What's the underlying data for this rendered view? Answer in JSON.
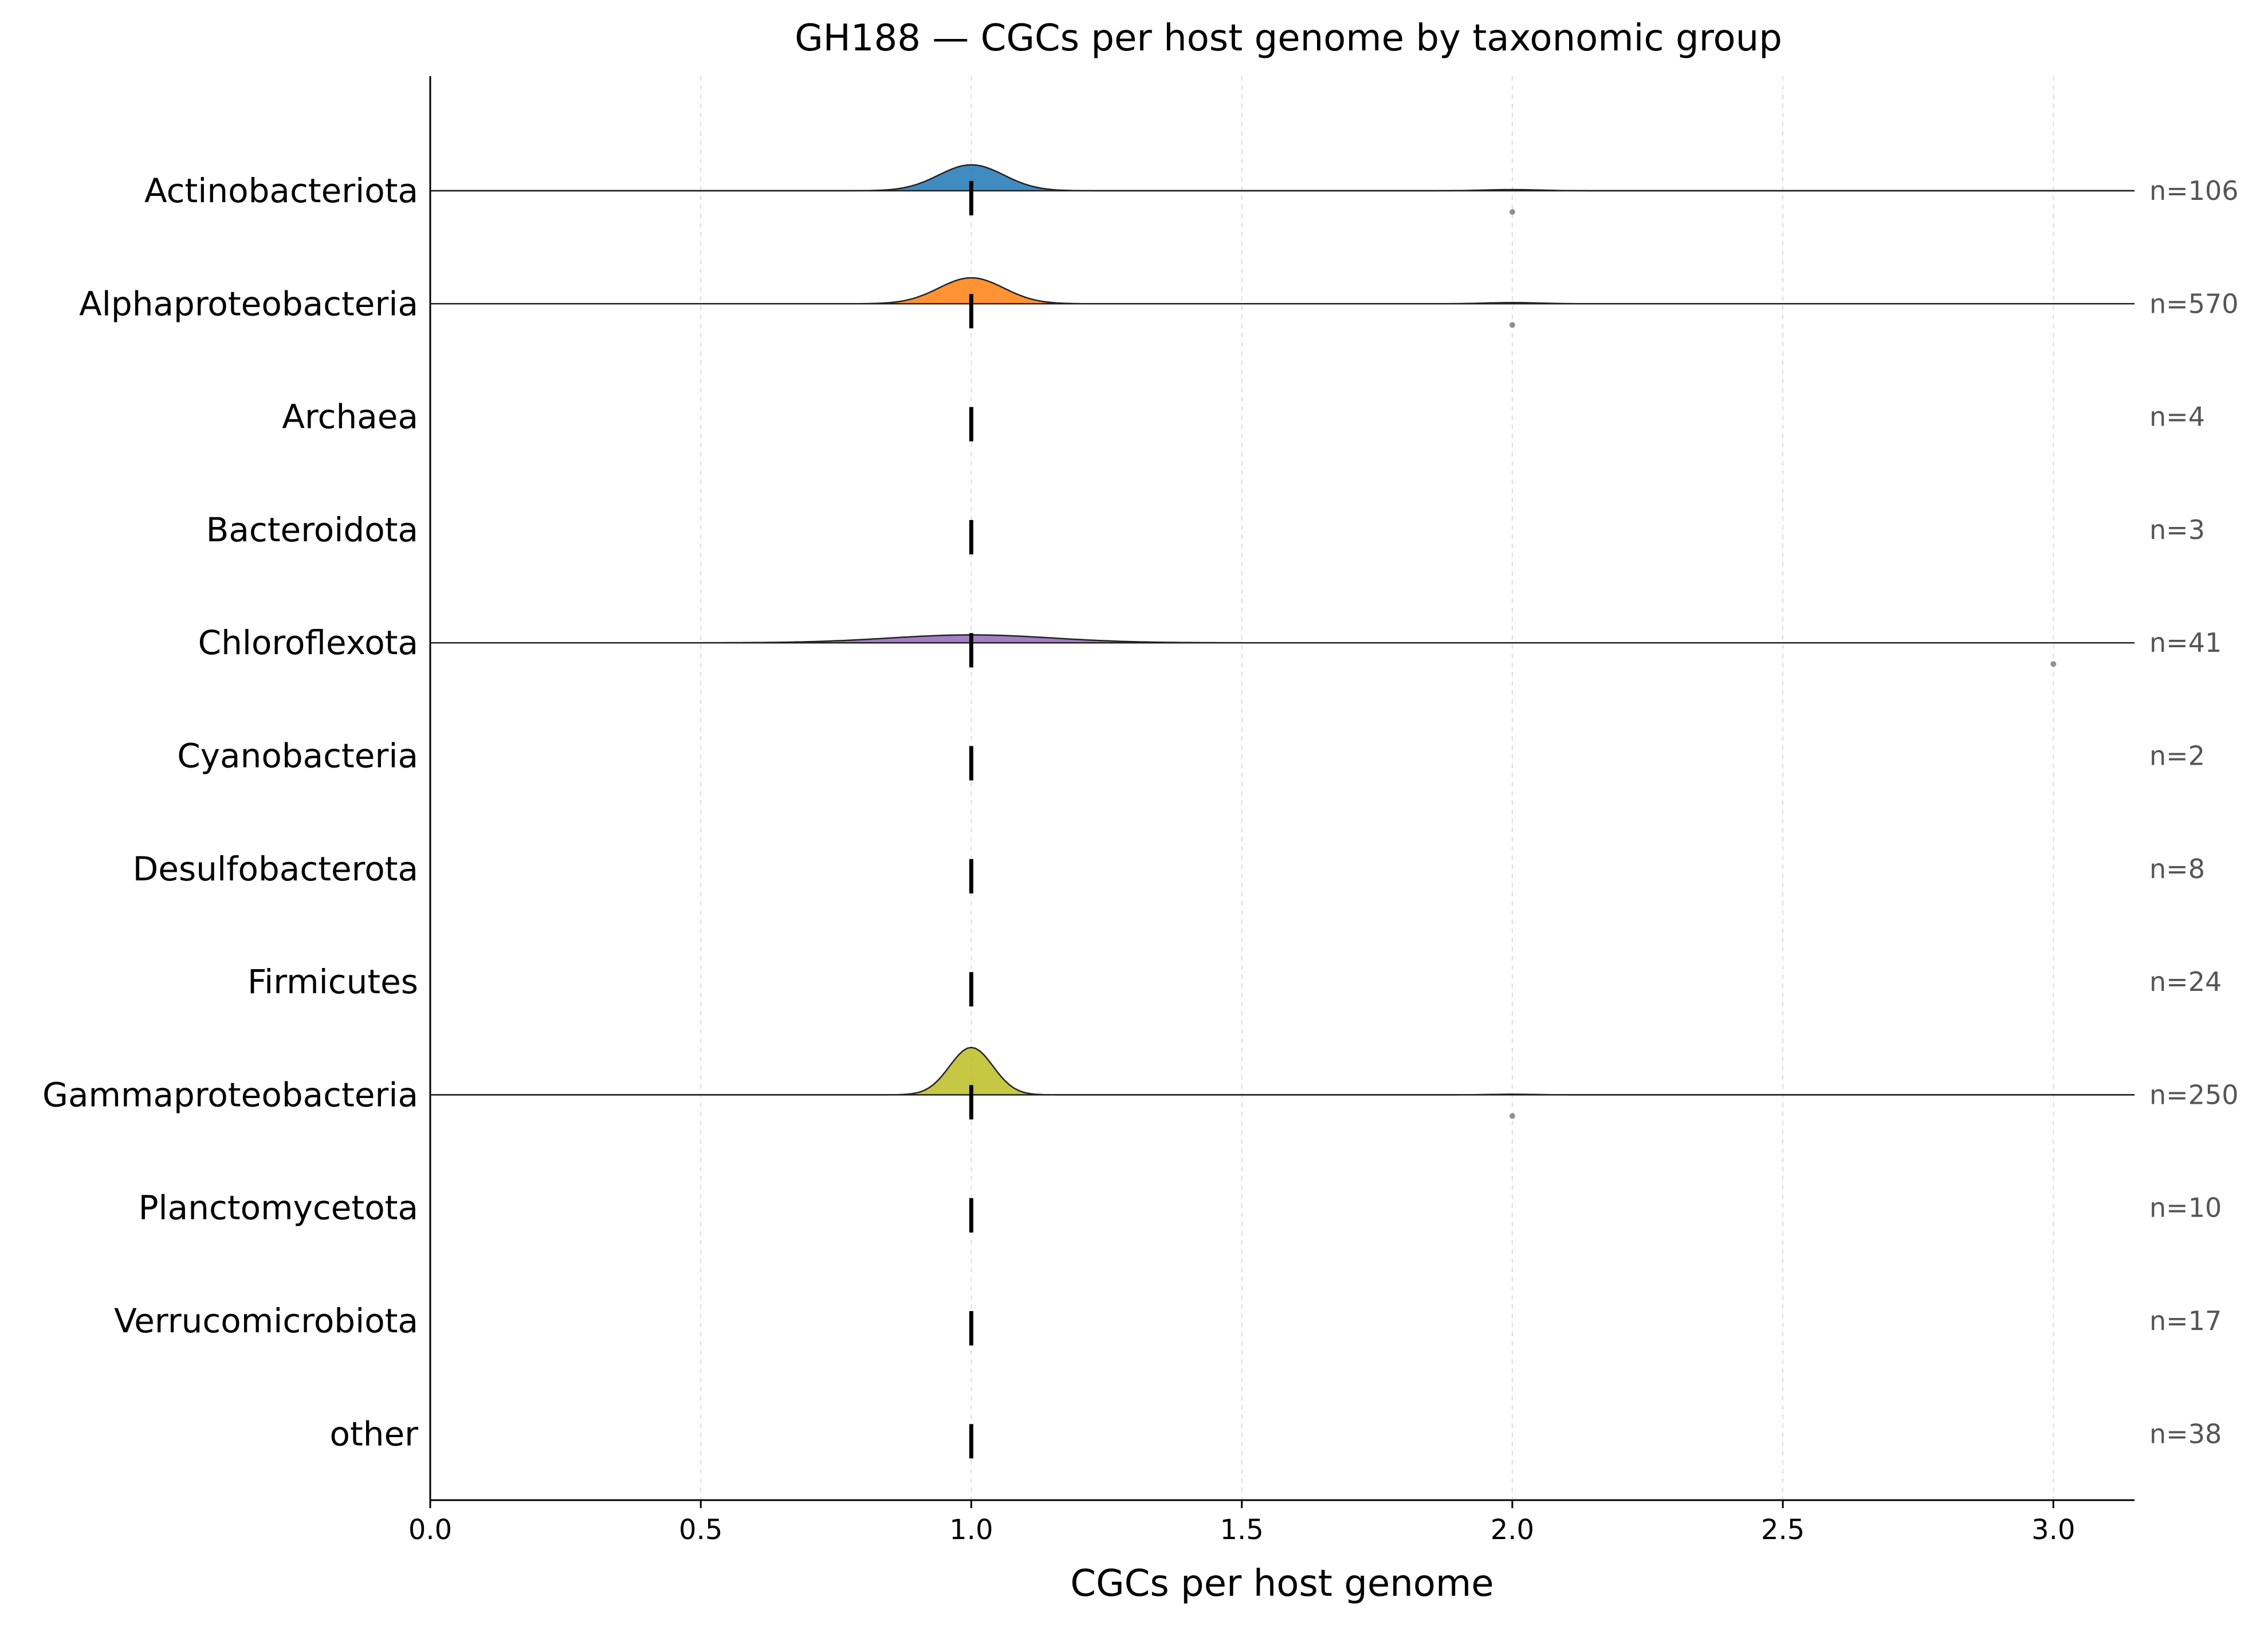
{
  "chart_data": {
    "type": "ridgeline",
    "title": "GH188 — CGCs per host genome by taxonomic group",
    "xlabel": "CGCs per host genome",
    "ylabel": "",
    "xlim": [
      0.0,
      3.15
    ],
    "xticks": [
      "0.0",
      "0.5",
      "1.0",
      "1.5",
      "2.0",
      "2.5",
      "3.0"
    ],
    "grid": "x dashed",
    "categories": [
      "Actinobacteriota",
      "Alphaproteobacteria",
      "Archaea",
      "Bacteroidota",
      "Chloroflexota",
      "Cyanobacteria",
      "Desulfobacterota",
      "Firmicutes",
      "Gammaproteobacteria",
      "Planctomycetota",
      "Verrucomicrobiota",
      "other"
    ],
    "n_labels": [
      "n=106",
      "n=570",
      "n=4",
      "n=3",
      "n=41",
      "n=2",
      "n=8",
      "n=24",
      "n=250",
      "n=10",
      "n=17",
      "n=38"
    ],
    "medians": [
      1.0,
      1.0,
      1.0,
      1.0,
      1.0,
      1.0,
      1.0,
      1.0,
      1.0,
      1.0,
      1.0,
      1.0
    ],
    "colors": [
      "#1f77b4",
      "#ff7f0e",
      null,
      null,
      "#9467bd",
      null,
      null,
      null,
      "#bcbd22",
      null,
      null,
      null
    ],
    "density": [
      {
        "peak": 1.0,
        "height": 0.23,
        "sd": 0.06,
        "secondary": [
          {
            "x": 2.0,
            "height": 0.01,
            "sd": 0.05
          }
        ]
      },
      {
        "peak": 1.0,
        "height": 0.23,
        "sd": 0.06,
        "secondary": [
          {
            "x": 2.0,
            "height": 0.01,
            "sd": 0.05
          }
        ]
      },
      null,
      null,
      {
        "peak": 1.0,
        "height": 0.07,
        "sd": 0.15,
        "secondary": []
      },
      null,
      null,
      null,
      {
        "peak": 1.0,
        "height": 0.42,
        "sd": 0.04,
        "secondary": [
          {
            "x": 2.0,
            "height": 0.005,
            "sd": 0.04
          }
        ]
      },
      null,
      null,
      null
    ],
    "outliers": [
      {
        "category": "Actinobacteriota",
        "x": 2.0
      },
      {
        "category": "Alphaproteobacteria",
        "x": 2.0
      },
      {
        "category": "Chloroflexota",
        "x": 3.0
      },
      {
        "category": "Gammaproteobacteria",
        "x": 2.0
      }
    ]
  }
}
